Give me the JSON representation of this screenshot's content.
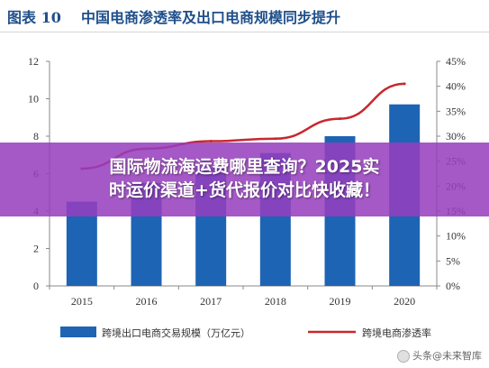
{
  "header": {
    "figure_label": "图表 10",
    "title": "中国电商渗透率及出口电商规模同步提升"
  },
  "chart_data": {
    "type": "bar",
    "categories": [
      "2015",
      "2016",
      "2017",
      "2018",
      "2019",
      "2020"
    ],
    "series": [
      {
        "name": "跨境出口电商交易规模（万亿元）",
        "type": "bar",
        "axis": "left",
        "color": "#1e64b4",
        "values": [
          4.5,
          5.5,
          6.3,
          7.1,
          8.0,
          9.7
        ]
      },
      {
        "name": "跨境电商渗透率",
        "type": "line",
        "axis": "right",
        "color": "#c8282d",
        "values": [
          23.5,
          27.5,
          29.0,
          29.5,
          33.5,
          40.5
        ]
      }
    ],
    "y_left": {
      "min": 0,
      "max": 12,
      "ticks": [
        "0",
        "2",
        "4",
        "6",
        "8",
        "10",
        "12"
      ]
    },
    "y_right": {
      "min": 0,
      "max": 45,
      "ticks": [
        "0%",
        "5%",
        "10%",
        "15%",
        "20%",
        "25%",
        "30%",
        "35%",
        "40%",
        "45%"
      ]
    },
    "grid": false,
    "legend_position": "bottom"
  },
  "overlay": {
    "line1": "国际物流海运费哪里查询？2025实",
    "line2": "时运价渠道+货代报价对比快收藏！",
    "color": "#963ebe"
  },
  "watermark": {
    "text": "头条@未来智库"
  }
}
